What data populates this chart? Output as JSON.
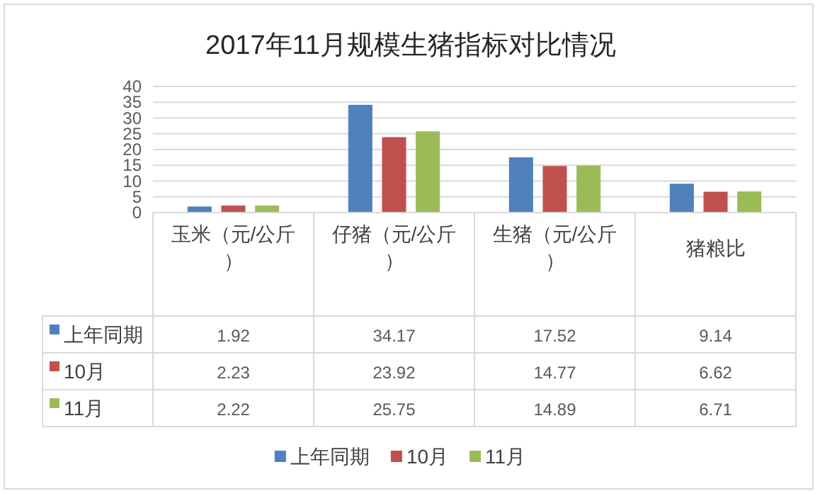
{
  "chart_data": {
    "type": "bar",
    "title": "2017年11月规模生猪指标对比情况",
    "categories": [
      "玉米（元/公斤）",
      "仔猪（元/公斤）",
      "生猪（元/公斤）",
      "猪粮比"
    ],
    "series": [
      {
        "name": "上年同期",
        "color": "#4f81bd",
        "values": [
          1.92,
          34.17,
          17.52,
          9.14
        ]
      },
      {
        "name": "10月",
        "color": "#c0504d",
        "values": [
          2.23,
          23.92,
          14.77,
          6.62
        ]
      },
      {
        "name": "11月",
        "color": "#9bbb59",
        "values": [
          2.22,
          25.75,
          14.89,
          6.71
        ]
      }
    ],
    "ylim": [
      0,
      40
    ],
    "yticks": [
      0,
      5,
      10,
      15,
      20,
      25,
      30,
      35,
      40
    ],
    "grid": "y",
    "legend": "bottom",
    "data_labels": true
  }
}
